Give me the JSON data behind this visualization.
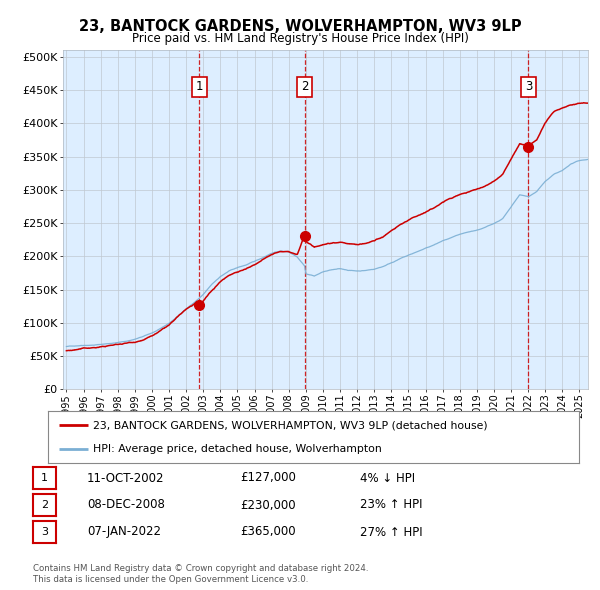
{
  "title": "23, BANTOCK GARDENS, WOLVERHAMPTON, WV3 9LP",
  "subtitle": "Price paid vs. HM Land Registry's House Price Index (HPI)",
  "background_color": "#ffffff",
  "plot_bg_color": "#ddeeff",
  "hpi_color": "#7bafd4",
  "price_color": "#cc0000",
  "marker_color": "#cc0000",
  "vline_color": "#cc0000",
  "yticks": [
    0,
    50000,
    100000,
    150000,
    200000,
    250000,
    300000,
    350000,
    400000,
    450000,
    500000
  ],
  "ytick_labels": [
    "£0",
    "£50K",
    "£100K",
    "£150K",
    "£200K",
    "£250K",
    "£300K",
    "£350K",
    "£400K",
    "£450K",
    "£500K"
  ],
  "transactions": [
    {
      "num": 1,
      "date_val": 2002.78,
      "price": 127000,
      "label": "11-OCT-2002",
      "amount": "£127,000",
      "hpi_diff": "4% ↓ HPI"
    },
    {
      "num": 2,
      "date_val": 2008.93,
      "price": 230000,
      "label": "08-DEC-2008",
      "amount": "£230,000",
      "hpi_diff": "23% ↑ HPI"
    },
    {
      "num": 3,
      "date_val": 2022.02,
      "price": 365000,
      "label": "07-JAN-2022",
      "amount": "£365,000",
      "hpi_diff": "27% ↑ HPI"
    }
  ],
  "legend_line1": "23, BANTOCK GARDENS, WOLVERHAMPTON, WV3 9LP (detached house)",
  "legend_line2": "HPI: Average price, detached house, Wolverhampton",
  "footer1": "Contains HM Land Registry data © Crown copyright and database right 2024.",
  "footer2": "This data is licensed under the Open Government Licence v3.0.",
  "xmin": 1994.8,
  "xmax": 2025.5,
  "ymin": 0,
  "ymax": 500000,
  "hpi_segments": [
    [
      1995.0,
      65000
    ],
    [
      1995.5,
      66000
    ],
    [
      1996.0,
      67500
    ],
    [
      1996.5,
      68000
    ],
    [
      1997.0,
      69000
    ],
    [
      1997.5,
      70500
    ],
    [
      1998.0,
      72000
    ],
    [
      1998.5,
      74000
    ],
    [
      1999.0,
      77000
    ],
    [
      1999.5,
      81000
    ],
    [
      2000.0,
      86000
    ],
    [
      2000.5,
      92000
    ],
    [
      2001.0,
      100000
    ],
    [
      2001.5,
      110000
    ],
    [
      2002.0,
      122000
    ],
    [
      2002.5,
      132000
    ],
    [
      2003.0,
      143000
    ],
    [
      2003.5,
      158000
    ],
    [
      2004.0,
      170000
    ],
    [
      2004.5,
      178000
    ],
    [
      2005.0,
      183000
    ],
    [
      2005.5,
      187000
    ],
    [
      2006.0,
      192000
    ],
    [
      2006.5,
      198000
    ],
    [
      2007.0,
      205000
    ],
    [
      2007.5,
      208000
    ],
    [
      2008.0,
      207000
    ],
    [
      2008.5,
      200000
    ],
    [
      2008.93,
      187000
    ],
    [
      2009.0,
      175000
    ],
    [
      2009.5,
      172000
    ],
    [
      2010.0,
      178000
    ],
    [
      2010.5,
      181000
    ],
    [
      2011.0,
      182000
    ],
    [
      2011.5,
      180000
    ],
    [
      2012.0,
      179000
    ],
    [
      2012.5,
      180000
    ],
    [
      2013.0,
      182000
    ],
    [
      2013.5,
      186000
    ],
    [
      2014.0,
      192000
    ],
    [
      2014.5,
      198000
    ],
    [
      2015.0,
      203000
    ],
    [
      2015.5,
      208000
    ],
    [
      2016.0,
      213000
    ],
    [
      2016.5,
      218000
    ],
    [
      2017.0,
      224000
    ],
    [
      2017.5,
      228000
    ],
    [
      2018.0,
      232000
    ],
    [
      2018.5,
      235000
    ],
    [
      2019.0,
      238000
    ],
    [
      2019.5,
      242000
    ],
    [
      2020.0,
      248000
    ],
    [
      2020.5,
      255000
    ],
    [
      2021.0,
      272000
    ],
    [
      2021.5,
      290000
    ],
    [
      2022.0,
      287000
    ],
    [
      2022.02,
      287000
    ],
    [
      2022.5,
      295000
    ],
    [
      2023.0,
      310000
    ],
    [
      2023.5,
      320000
    ],
    [
      2024.0,
      325000
    ],
    [
      2024.5,
      335000
    ],
    [
      2025.0,
      340000
    ],
    [
      2025.5,
      342000
    ]
  ],
  "price_segments": [
    [
      1995.0,
      63000
    ],
    [
      1995.5,
      64500
    ],
    [
      1996.0,
      66000
    ],
    [
      1996.5,
      67000
    ],
    [
      1997.0,
      68000
    ],
    [
      1997.5,
      70000
    ],
    [
      1998.0,
      71500
    ],
    [
      1998.5,
      73500
    ],
    [
      1999.0,
      76000
    ],
    [
      1999.5,
      80000
    ],
    [
      2000.0,
      85000
    ],
    [
      2000.5,
      92000
    ],
    [
      2001.0,
      100000
    ],
    [
      2001.5,
      111000
    ],
    [
      2002.0,
      122000
    ],
    [
      2002.5,
      130000
    ],
    [
      2002.78,
      127000
    ],
    [
      2003.0,
      133000
    ],
    [
      2003.5,
      148000
    ],
    [
      2004.0,
      162000
    ],
    [
      2004.5,
      172000
    ],
    [
      2005.0,
      178000
    ],
    [
      2005.5,
      183000
    ],
    [
      2006.0,
      188000
    ],
    [
      2006.5,
      195000
    ],
    [
      2007.0,
      202000
    ],
    [
      2007.5,
      206000
    ],
    [
      2008.0,
      205000
    ],
    [
      2008.5,
      200000
    ],
    [
      2008.93,
      230000
    ],
    [
      2009.0,
      220000
    ],
    [
      2009.5,
      210000
    ],
    [
      2010.0,
      215000
    ],
    [
      2010.5,
      218000
    ],
    [
      2011.0,
      220000
    ],
    [
      2011.5,
      218000
    ],
    [
      2012.0,
      216000
    ],
    [
      2012.5,
      218000
    ],
    [
      2013.0,
      222000
    ],
    [
      2013.5,
      228000
    ],
    [
      2014.0,
      237000
    ],
    [
      2014.5,
      245000
    ],
    [
      2015.0,
      252000
    ],
    [
      2015.5,
      258000
    ],
    [
      2016.0,
      265000
    ],
    [
      2016.5,
      271000
    ],
    [
      2017.0,
      280000
    ],
    [
      2017.5,
      286000
    ],
    [
      2018.0,
      292000
    ],
    [
      2018.5,
      296000
    ],
    [
      2019.0,
      300000
    ],
    [
      2019.5,
      305000
    ],
    [
      2020.0,
      312000
    ],
    [
      2020.5,
      322000
    ],
    [
      2021.0,
      345000
    ],
    [
      2021.5,
      368000
    ],
    [
      2022.02,
      365000
    ],
    [
      2022.5,
      375000
    ],
    [
      2023.0,
      400000
    ],
    [
      2023.5,
      415000
    ],
    [
      2024.0,
      420000
    ],
    [
      2024.5,
      425000
    ],
    [
      2025.0,
      428000
    ],
    [
      2025.5,
      430000
    ]
  ]
}
